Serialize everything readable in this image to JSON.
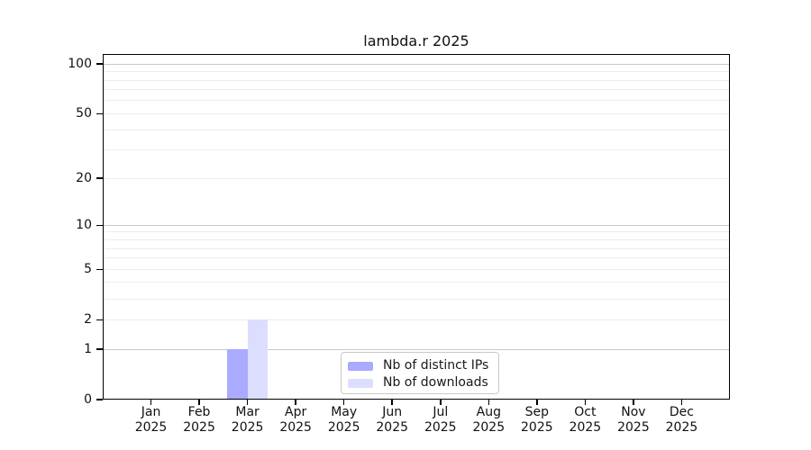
{
  "chart_data": {
    "type": "bar",
    "title": "lambda.r 2025",
    "categories": [
      {
        "label": "Jan",
        "sublabel": "2025"
      },
      {
        "label": "Feb",
        "sublabel": "2025"
      },
      {
        "label": "Mar",
        "sublabel": "2025"
      },
      {
        "label": "Apr",
        "sublabel": "2025"
      },
      {
        "label": "May",
        "sublabel": "2025"
      },
      {
        "label": "Jun",
        "sublabel": "2025"
      },
      {
        "label": "Jul",
        "sublabel": "2025"
      },
      {
        "label": "Aug",
        "sublabel": "2025"
      },
      {
        "label": "Sep",
        "sublabel": "2025"
      },
      {
        "label": "Oct",
        "sublabel": "2025"
      },
      {
        "label": "Nov",
        "sublabel": "2025"
      },
      {
        "label": "Dec",
        "sublabel": "2025"
      }
    ],
    "series": [
      {
        "name": "Nb of distinct IPs",
        "color": "#aaaaff",
        "values": [
          0,
          0,
          1,
          0,
          0,
          0,
          0,
          0,
          0,
          0,
          0,
          0
        ]
      },
      {
        "name": "Nb of downloads",
        "color": "#ddddff",
        "values": [
          0,
          0,
          2,
          0,
          0,
          0,
          0,
          0,
          0,
          0,
          0,
          0
        ]
      }
    ],
    "y_axis": {
      "scale": "log1p",
      "max": 115,
      "tick_values": [
        100,
        50,
        20,
        10,
        5,
        2,
        1,
        0
      ],
      "major_gridlines": [
        1,
        10,
        100
      ],
      "minor_gridlines": [
        2,
        3,
        4,
        5,
        6,
        7,
        8,
        9,
        20,
        30,
        40,
        50,
        60,
        70,
        80,
        90
      ]
    },
    "legend": {
      "position": "bottom-center-inside"
    },
    "grid": true,
    "colors": {
      "bar_distinct_ips": "#aaaaff",
      "bar_downloads": "#ddddff",
      "grid_major": "#c9c9c9",
      "grid_minor": "#ececec",
      "axis": "#000000"
    }
  }
}
